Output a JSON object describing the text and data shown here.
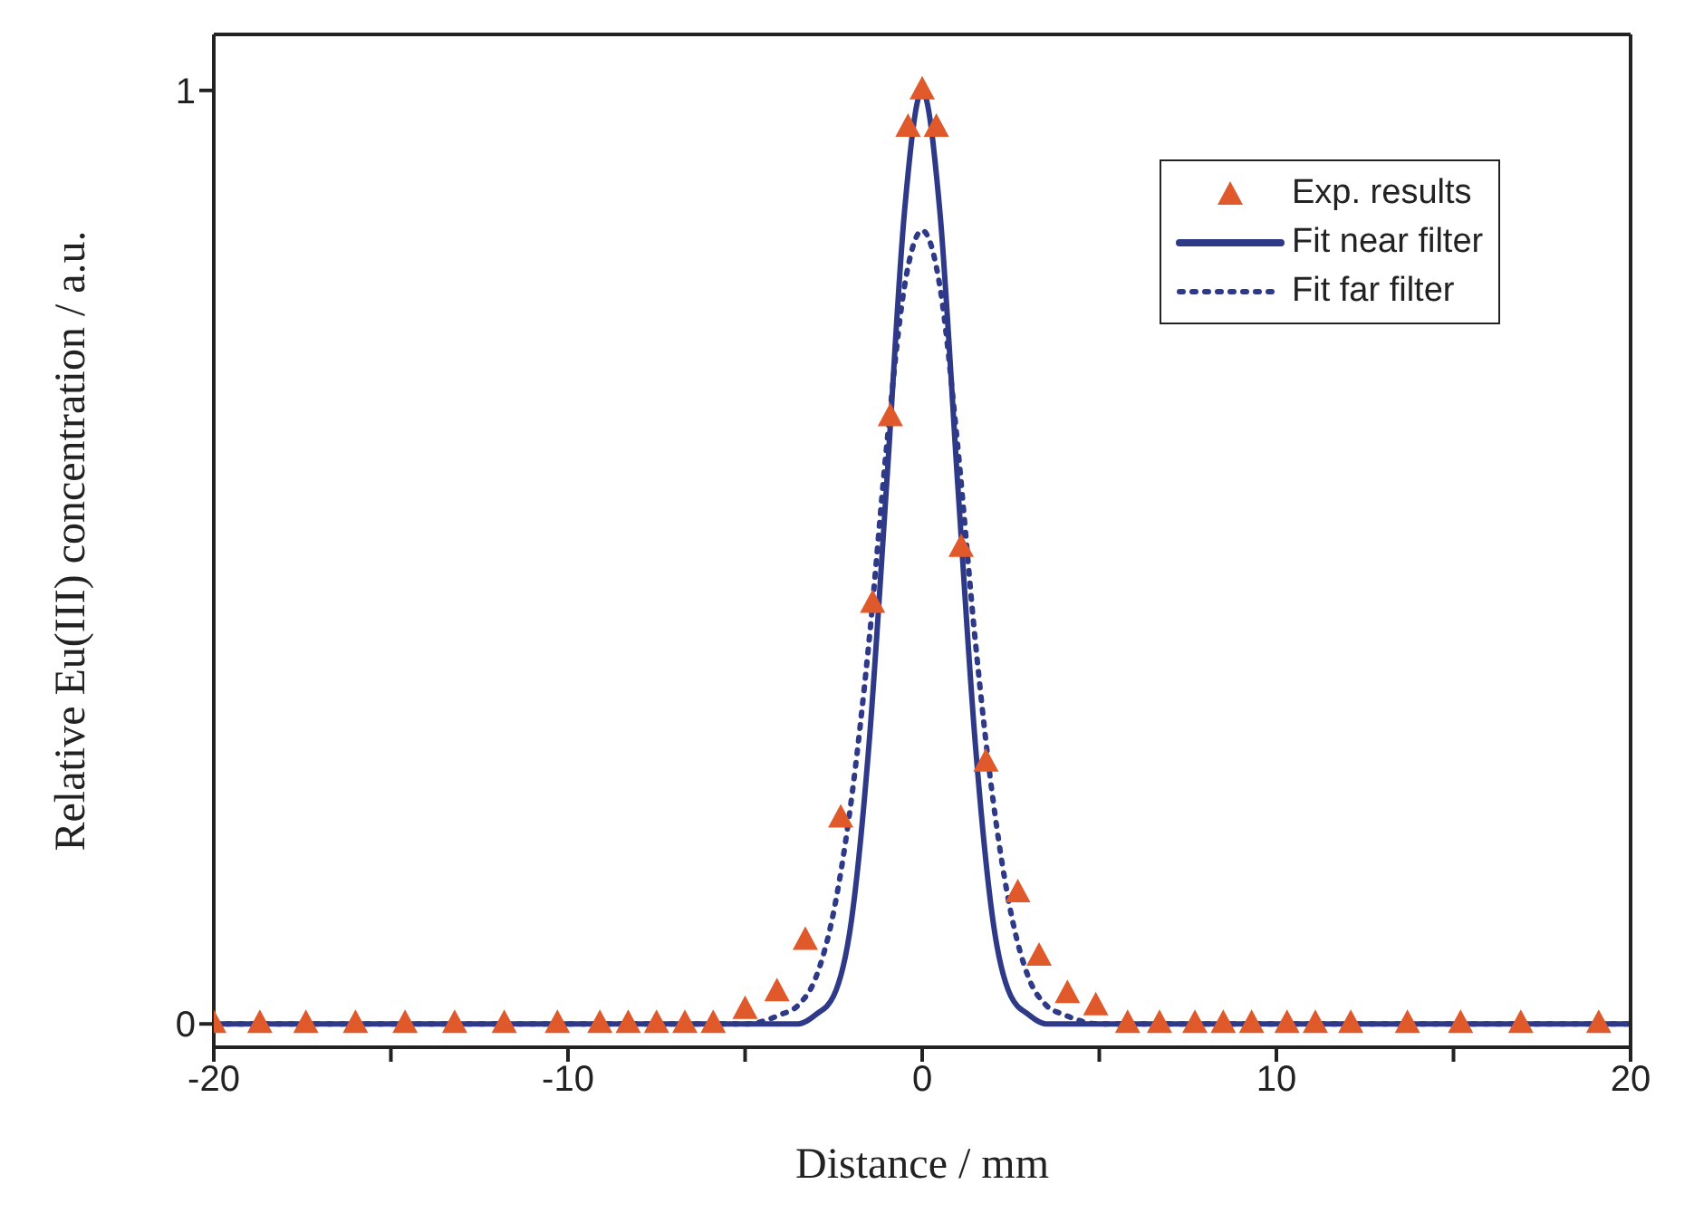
{
  "chart_data": {
    "type": "scatter",
    "xlabel": "Distance / mm",
    "ylabel": "Relative Eu(III) concentration / a.u.",
    "xlim": [
      -20,
      20
    ],
    "xticks": [
      -20,
      {
        "value": -15,
        "label": null
      },
      -10,
      {
        "value": -5,
        "label": null
      },
      0,
      {
        "value": 5,
        "label": null
      },
      10,
      {
        "value": 15,
        "label": null
      },
      20
    ],
    "ylim": [
      -0.025,
      1.06
    ],
    "yticks": [
      0,
      1
    ],
    "legend": "top right",
    "series": [
      {
        "name": "Exp. results",
        "type": "scatter",
        "marker": "triangle",
        "color": "#e0592a",
        "x": [
          -20,
          -18.7,
          -17.4,
          -16,
          -14.6,
          -13.2,
          -11.8,
          -10.3,
          -9.1,
          -8.3,
          -7.5,
          -6.7,
          -5.9,
          -5,
          -4.1,
          -3.3,
          -2.3,
          -1.4,
          -0.9,
          -0.4,
          0,
          0.4,
          1.1,
          1.8,
          2.7,
          3.3,
          4.1,
          4.9,
          5.8,
          6.7,
          7.7,
          8.5,
          9.3,
          10.3,
          11.1,
          12.1,
          13.7,
          15.2,
          16.9,
          19.1
        ],
        "values": [
          0,
          0,
          0,
          0,
          0,
          0,
          0,
          0,
          0,
          0,
          0,
          0,
          0,
          0.015,
          0.034,
          0.089,
          0.22,
          0.45,
          0.65,
          0.96,
          1,
          0.96,
          0.51,
          0.28,
          0.14,
          0.072,
          0.032,
          0.019,
          0,
          0,
          0,
          0,
          0,
          0,
          0,
          0,
          0,
          0,
          0,
          0
        ]
      },
      {
        "name": "Fit near filter",
        "type": "line",
        "marker": "none",
        "line_style": "solid",
        "color": "#2e3a87",
        "x": [
          -20,
          -5,
          -4,
          -3.5,
          -3,
          -2.5,
          -2,
          -1.5,
          -1,
          -0.5,
          0,
          0.5,
          1,
          1.5,
          2,
          2.5,
          3,
          3.5,
          4,
          5,
          20
        ],
        "values": [
          0,
          0,
          0,
          0,
          0.01,
          0.03,
          0.11,
          0.3,
          0.58,
          0.87,
          1,
          0.87,
          0.58,
          0.3,
          0.11,
          0.03,
          0.01,
          0,
          0,
          0,
          0
        ]
      },
      {
        "name": "Fit far filter",
        "type": "line",
        "marker": "none",
        "line_style": "dotted",
        "color": "#2e3a87",
        "x": [
          -20,
          -5,
          -4,
          -3.5,
          -3,
          -2.5,
          -2,
          -1.5,
          -1,
          -0.5,
          0,
          0.5,
          1,
          1.5,
          2,
          2.5,
          3,
          3.5,
          4,
          5,
          20
        ],
        "values": [
          0,
          0,
          0.01,
          0.02,
          0.05,
          0.12,
          0.24,
          0.41,
          0.62,
          0.79,
          0.85,
          0.79,
          0.62,
          0.41,
          0.24,
          0.12,
          0.05,
          0.02,
          0.01,
          0,
          0
        ]
      }
    ]
  }
}
